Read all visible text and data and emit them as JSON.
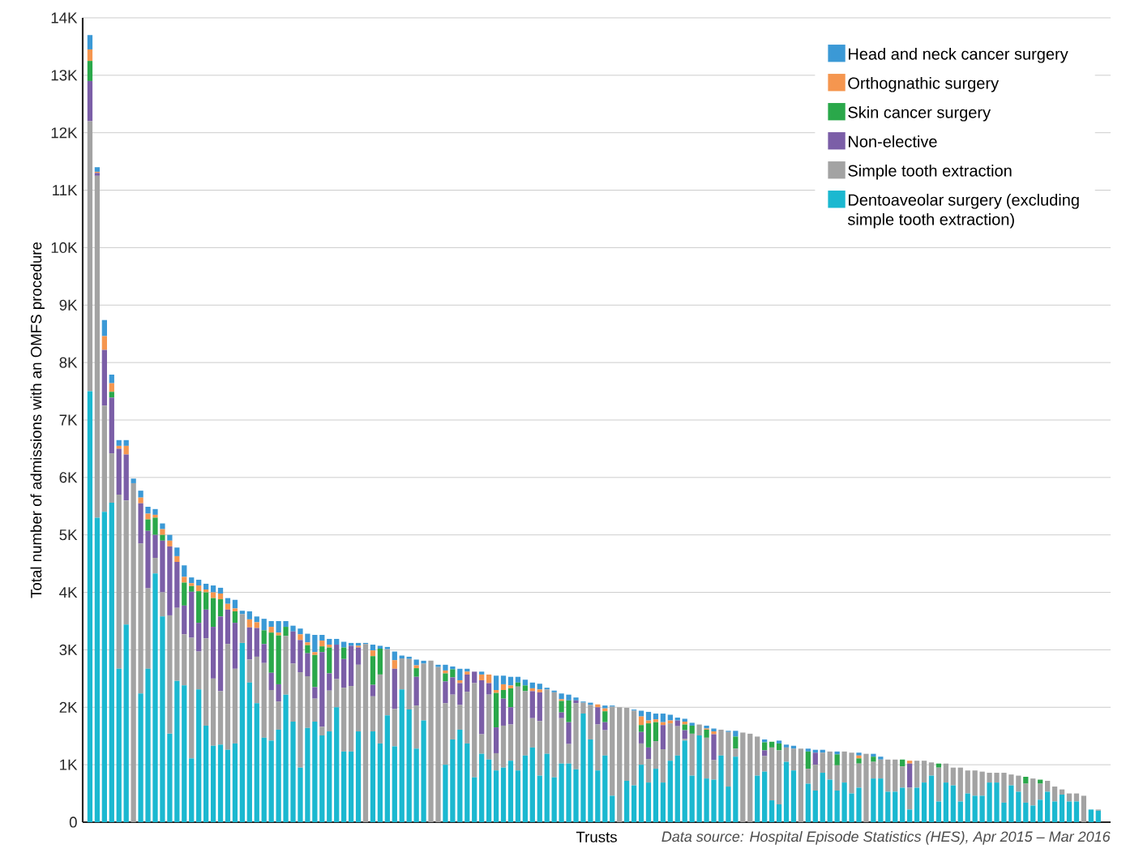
{
  "chart_data": {
    "type": "bar",
    "stacked": true,
    "ylabel": "Total number of admissions with an OMFS procedure",
    "xlabel": "Trusts",
    "annotations": [
      "Data source: Hospital Episode Statistics (HES), Apr 2015 – Mar 2016"
    ],
    "categories": [
      null,
      null,
      null,
      null,
      null,
      null,
      null,
      null,
      null,
      null,
      null,
      null,
      null,
      null,
      null,
      null,
      null,
      null,
      null,
      null,
      null,
      null,
      null,
      null,
      null,
      null,
      null,
      null,
      null,
      null,
      null,
      null,
      null,
      null,
      null,
      null,
      null,
      null,
      null,
      null,
      null,
      null,
      null,
      null,
      null,
      null,
      null,
      null,
      null,
      null,
      null,
      null,
      null,
      null,
      null,
      null,
      null,
      null,
      null,
      null,
      null,
      null,
      null,
      null,
      null,
      null,
      null,
      null,
      null,
      null,
      null,
      null,
      null,
      null,
      null,
      null,
      null,
      null,
      null,
      null,
      null,
      null,
      null,
      null,
      null,
      null,
      null,
      null,
      null,
      null,
      null,
      null,
      null,
      null,
      null,
      null,
      null,
      null,
      null,
      null,
      null,
      null,
      null,
      null,
      null,
      null,
      null,
      null,
      null,
      null,
      null,
      null,
      null,
      null,
      null,
      null,
      null,
      null,
      null,
      null,
      null,
      null,
      null,
      null,
      null,
      null,
      null,
      null,
      null,
      null,
      null,
      null,
      null,
      null,
      null,
      null,
      null,
      null,
      null,
      null
    ],
    "series": [
      {
        "name": "Dentoaveolar surgery (excluding simple tooth extraction)",
        "color": "#1bb8d0",
        "values": [
          7500,
          5300,
          5400,
          5560,
          2670,
          3440,
          0,
          2240,
          2670,
          4330,
          3580,
          1540,
          2460,
          2380,
          1110,
          2310,
          1680,
          1330,
          1350,
          1260,
          1370,
          3120,
          2430,
          2070,
          1470,
          1420,
          1610,
          2220,
          1750,
          950,
          1640,
          1750,
          1510,
          1580,
          2000,
          1230,
          1230,
          1580,
          0,
          1580,
          1370,
          1860,
          1320,
          2310,
          1960,
          1280,
          1770,
          0,
          0,
          1000,
          1440,
          1610,
          1370,
          780,
          1190,
          1090,
          900,
          950,
          1070,
          900,
          1160,
          1300,
          810,
          1190,
          780,
          1020,
          1020,
          920,
          1890,
          1440,
          900,
          1160,
          460,
          0,
          720,
          640,
          1000,
          690,
          930,
          690,
          1070,
          1160,
          1420,
          810,
          1510,
          760,
          740,
          1160,
          620,
          1140,
          0,
          0,
          810,
          880,
          380,
          310,
          1050,
          900,
          0,
          670,
          550,
          860,
          740,
          550,
          690,
          500,
          600,
          0,
          760,
          760,
          530,
          530,
          600,
          220,
          600,
          690,
          810,
          360,
          690,
          640,
          360,
          500,
          460,
          460,
          690,
          690,
          340,
          640,
          530,
          340,
          290,
          390,
          530,
          360,
          480,
          360,
          360,
          0,
          220,
          200
        ]
      },
      {
        "name": "Simple tooth extraction",
        "color": "#a3a3a3",
        "values": [
          4700,
          5950,
          1850,
          860,
          3030,
          2160,
          5900,
          2610,
          1400,
          270,
          420,
          2060,
          1270,
          890,
          2100,
          660,
          1520,
          1170,
          930,
          1840,
          1300,
          500,
          400,
          810,
          1300,
          880,
          490,
          1020,
          1010,
          1660,
          900,
          400,
          150,
          710,
          490,
          1110,
          1140,
          1160,
          3100,
          610,
          1200,
          1150,
          650,
          540,
          880,
          750,
          990,
          2810,
          2700,
          1070,
          780,
          430,
          900,
          1640,
          340,
          1130,
          300,
          730,
          630,
          1460,
          1120,
          510,
          950,
          1120,
          1480,
          790,
          340,
          1150,
          190,
          600,
          800,
          440,
          1550,
          2000,
          1270,
          1300,
          370,
          410,
          480,
          580,
          650,
          510,
          30,
          730,
          190,
          710,
          340,
          450,
          950,
          140,
          1560,
          1540,
          680,
          270,
          920,
          940,
          250,
          380,
          1280,
          260,
          450,
          350,
          490,
          440,
          540,
          710,
          420,
          1190,
          290,
          330,
          560,
          560,
          370,
          380,
          470,
          380,
          230,
          590,
          330,
          310,
          590,
          400,
          440,
          420,
          170,
          170,
          520,
          190,
          280,
          330,
          470,
          280,
          190,
          260,
          90,
          140,
          140,
          460,
          0,
          20
        ]
      },
      {
        "name": "Non-elective",
        "color": "#7b5ea7",
        "values": [
          700,
          50,
          970,
          970,
          800,
          800,
          0,
          700,
          1000,
          400,
          900,
          1200,
          800,
          500,
          800,
          500,
          500,
          900,
          1300,
          600,
          800,
          0,
          560,
          500,
          330,
          300,
          300,
          0,
          560,
          560,
          400,
          200,
          1300,
          300,
          600,
          500,
          700,
          300,
          0,
          200,
          0,
          0,
          700,
          0,
          0,
          500,
          0,
          0,
          0,
          380,
          300,
          380,
          300,
          200,
          940,
          200,
          450,
          470,
          300,
          0,
          0,
          470,
          500,
          0,
          0,
          100,
          380,
          50,
          0,
          0,
          300,
          140,
          0,
          0,
          0,
          0,
          200,
          200,
          0,
          420,
          0,
          100,
          150,
          0,
          0,
          0,
          450,
          0,
          0,
          0,
          0,
          0,
          0,
          100,
          0,
          0,
          0,
          0,
          0,
          0,
          210,
          0,
          0,
          0,
          0,
          0,
          0,
          0,
          0,
          0,
          0,
          0,
          0,
          420,
          0,
          0,
          0,
          0,
          0,
          0,
          0,
          0,
          0,
          0,
          0,
          0,
          0,
          0,
          0,
          0,
          0,
          0,
          0,
          0,
          0,
          0,
          0,
          0,
          0,
          0
        ]
      },
      {
        "name": "Skin cancer surgery",
        "color": "#2aa84a",
        "values": [
          350,
          0,
          0,
          100,
          0,
          0,
          0,
          0,
          200,
          300,
          100,
          0,
          0,
          400,
          100,
          550,
          300,
          500,
          300,
          0,
          200,
          0,
          0,
          0,
          240,
          700,
          850,
          160,
          0,
          0,
          140,
          560,
          100,
          450,
          0,
          200,
          0,
          0,
          0,
          500,
          450,
          0,
          0,
          0,
          0,
          150,
          0,
          0,
          0,
          140,
          140,
          0,
          0,
          0,
          0,
          0,
          600,
          150,
          330,
          70,
          100,
          0,
          0,
          0,
          0,
          200,
          380,
          0,
          0,
          0,
          0,
          190,
          0,
          0,
          0,
          0,
          120,
          420,
          330,
          0,
          0,
          0,
          100,
          140,
          0,
          140,
          0,
          0,
          0,
          210,
          0,
          0,
          0,
          140,
          100,
          120,
          0,
          0,
          0,
          300,
          0,
          0,
          0,
          190,
          0,
          0,
          90,
          0,
          90,
          0,
          0,
          0,
          120,
          0,
          0,
          0,
          0,
          70,
          0,
          0,
          0,
          0,
          0,
          0,
          0,
          0,
          0,
          0,
          0,
          120,
          0,
          70,
          0,
          0,
          0,
          0,
          0,
          0,
          0,
          0
        ]
      },
      {
        "name": "Orthognathic surgery",
        "color": "#f5964f",
        "values": [
          200,
          20,
          240,
          150,
          50,
          150,
          0,
          100,
          100,
          50,
          100,
          100,
          100,
          100,
          50,
          100,
          50,
          100,
          100,
          100,
          50,
          0,
          140,
          100,
          0,
          100,
          50,
          0,
          0,
          100,
          50,
          50,
          100,
          50,
          0,
          0,
          0,
          30,
          0,
          100,
          0,
          0,
          150,
          0,
          0,
          50,
          0,
          0,
          0,
          50,
          0,
          50,
          50,
          0,
          100,
          150,
          50,
          100,
          50,
          0,
          0,
          50,
          50,
          0,
          0,
          30,
          0,
          0,
          0,
          0,
          50,
          50,
          0,
          0,
          0,
          0,
          150,
          50,
          50,
          50,
          50,
          0,
          50,
          0,
          0,
          20,
          50,
          0,
          0,
          0,
          0,
          0,
          0,
          0,
          0,
          0,
          0,
          0,
          0,
          0,
          0,
          0,
          0,
          0,
          0,
          0,
          50,
          0,
          0,
          0,
          0,
          0,
          0,
          50,
          0,
          0,
          0,
          0,
          0,
          0,
          0,
          0,
          0,
          0,
          0,
          0,
          0,
          0,
          0,
          0,
          0,
          0,
          0,
          0,
          0,
          0,
          0,
          0,
          0,
          0
        ]
      },
      {
        "name": "Head and neck cancer surgery",
        "color": "#3b99d6",
        "values": [
          250,
          80,
          280,
          150,
          100,
          100,
          80,
          120,
          120,
          100,
          100,
          100,
          150,
          200,
          100,
          100,
          100,
          120,
          100,
          100,
          150,
          60,
          140,
          100,
          200,
          100,
          200,
          100,
          100,
          100,
          150,
          300,
          100,
          100,
          100,
          100,
          50,
          50,
          20,
          100,
          50,
          40,
          150,
          50,
          40,
          100,
          50,
          0,
          40,
          100,
          50,
          200,
          50,
          0,
          50,
          0,
          250,
          150,
          150,
          100,
          100,
          100,
          100,
          30,
          30,
          100,
          100,
          50,
          20,
          40,
          0,
          50,
          20,
          0,
          0,
          20,
          100,
          150,
          100,
          150,
          100,
          50,
          50,
          50,
          0,
          50,
          50,
          0,
          20,
          100,
          0,
          0,
          0,
          50,
          0,
          50,
          50,
          50,
          0,
          50,
          50,
          50,
          0,
          50,
          0,
          0,
          50,
          0,
          50,
          50,
          0,
          0,
          0,
          0,
          0,
          0,
          0,
          0,
          0,
          0,
          0,
          0,
          0,
          0,
          0,
          0,
          0,
          0,
          0,
          0,
          0,
          0,
          0,
          0,
          0,
          0,
          0,
          0,
          0,
          0
        ]
      }
    ],
    "ylim": [
      0,
      14000
    ],
    "yticks": [
      {
        "value": 0,
        "label": "0"
      },
      {
        "value": 1000,
        "label": "1K"
      },
      {
        "value": 2000,
        "label": "2K"
      },
      {
        "value": 3000,
        "label": "3K"
      },
      {
        "value": 4000,
        "label": "4K"
      },
      {
        "value": 5000,
        "label": "5K"
      },
      {
        "value": 6000,
        "label": "6K"
      },
      {
        "value": 7000,
        "label": "7K"
      },
      {
        "value": 8000,
        "label": "8K"
      },
      {
        "value": 9000,
        "label": "9K"
      },
      {
        "value": 10000,
        "label": "10K"
      },
      {
        "value": 11000,
        "label": "11K"
      },
      {
        "value": 12000,
        "label": "12K"
      },
      {
        "value": 13000,
        "label": "13K"
      },
      {
        "value": 14000,
        "label": "14K"
      }
    ],
    "grid": "y",
    "legend": "top right"
  }
}
